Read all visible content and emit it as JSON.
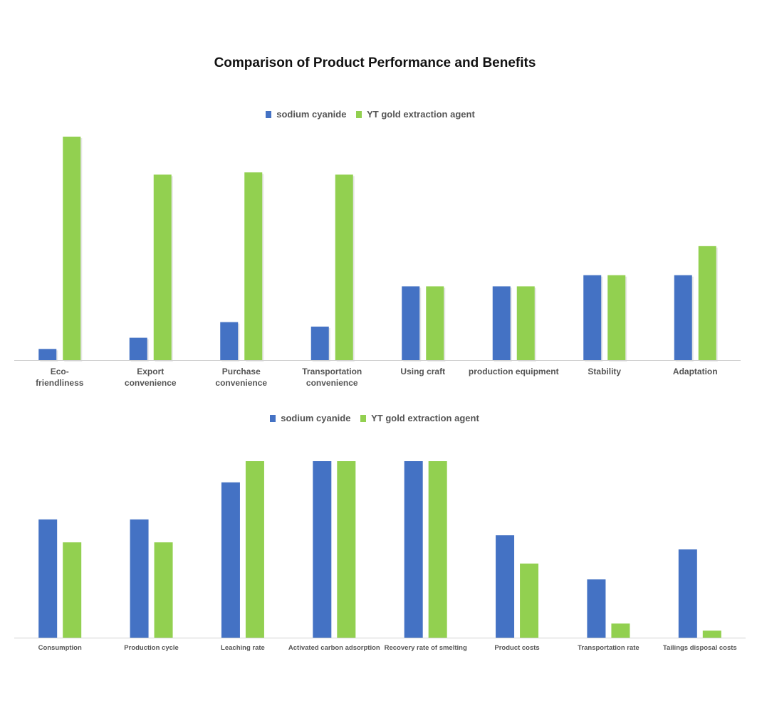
{
  "title": "Comparison of Product Performance and Benefits",
  "colors": {
    "series_a": "#4472C4",
    "series_b": "#92D050",
    "axis": "#D0D0D0",
    "label": "#555555"
  },
  "chart_data": [
    {
      "type": "bar",
      "categories": [
        [
          "Eco-",
          "friendliness"
        ],
        [
          "Export",
          "convenience"
        ],
        [
          "Purchase",
          "convenience"
        ],
        [
          "Transportation",
          "convenience"
        ],
        [
          "Using craft"
        ],
        [
          "production equipment"
        ],
        [
          "Stability"
        ],
        [
          "Adaptation"
        ]
      ],
      "series": [
        {
          "name": "sodium cyanide",
          "values": [
            5,
            10,
            17,
            15,
            33,
            33,
            38,
            38
          ]
        },
        {
          "name": "YT gold extraction agent",
          "values": [
            100,
            83,
            84,
            83,
            33,
            33,
            38,
            51
          ]
        }
      ],
      "ylim": [
        0,
        100
      ],
      "grid": false,
      "legend": "top-center",
      "xlabel": "",
      "ylabel": ""
    },
    {
      "type": "bar",
      "categories": [
        "Consumption",
        "Production cycle",
        "Leaching rate",
        "Activated carbon adsorption",
        "Recovery rate of smelting",
        "Product costs",
        "Transportation rate",
        "Tailings disposal costs"
      ],
      "series": [
        {
          "name": "sodium cyanide",
          "values": [
            67,
            67,
            88,
            100,
            100,
            58,
            33,
            50
          ]
        },
        {
          "name": "YT gold extraction agent",
          "values": [
            54,
            54,
            100,
            100,
            100,
            42,
            8,
            4
          ]
        }
      ],
      "ylim": [
        0,
        100
      ],
      "grid": false,
      "legend": "top-center",
      "xlabel": "",
      "ylabel": ""
    }
  ]
}
